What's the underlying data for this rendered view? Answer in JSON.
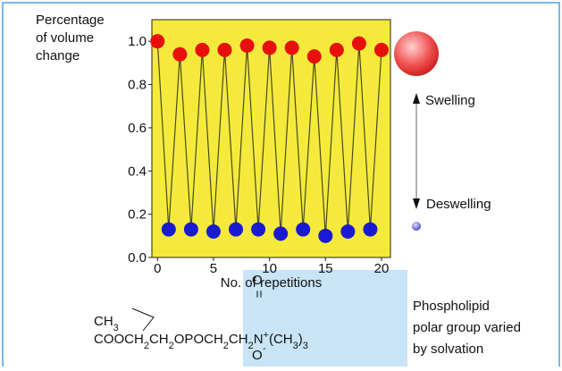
{
  "chart_data": {
    "type": "line",
    "y_label_lines": [
      "Percentage",
      "of volume",
      "change"
    ],
    "x_label": "No. of repetitions",
    "x": [
      0,
      1,
      2,
      3,
      4,
      5,
      6,
      7,
      8,
      9,
      10,
      11,
      12,
      13,
      14,
      15,
      16,
      17,
      18,
      19,
      20
    ],
    "values": [
      1.0,
      0.13,
      0.94,
      0.13,
      0.96,
      0.12,
      0.96,
      0.13,
      0.98,
      0.13,
      0.97,
      0.11,
      0.97,
      0.13,
      0.93,
      0.1,
      0.96,
      0.12,
      0.99,
      0.13,
      0.96
    ],
    "point_colors": [
      "#e8100c",
      "#1a1ad0",
      "#e8100c",
      "#1a1ad0",
      "#e8100c",
      "#1a1ad0",
      "#e8100c",
      "#1a1ad0",
      "#e8100c",
      "#1a1ad0",
      "#e8100c",
      "#1a1ad0",
      "#e8100c",
      "#1a1ad0",
      "#e8100c",
      "#1a1ad0",
      "#e8100c",
      "#1a1ad0",
      "#e8100c",
      "#1a1ad0",
      "#e8100c"
    ],
    "line_color": "#4a4a20",
    "background": "#f5ea3c",
    "xlim": [
      -0.5,
      20.8
    ],
    "xticks": [
      0,
      5,
      10,
      15,
      20
    ],
    "ylim": [
      0,
      1.1
    ],
    "yticks": [
      {
        "value": 0,
        "label": "0.0"
      },
      0.2,
      0.4,
      0.6,
      0.8,
      {
        "value": 1,
        "label": "1.0"
      }
    ],
    "swelling_label": "Swelling",
    "deswelling_label": "Deswelling"
  },
  "formula": {
    "top_o": "O",
    "double_bond": "=",
    "bottom_o": "O",
    "bottom_o_charge": "-",
    "line1": [
      "CH",
      "3"
    ],
    "line2": [
      "COOCH",
      "2",
      "CH",
      "2",
      "OPOCH",
      "2",
      "CH",
      "2",
      "N",
      "+",
      "(CH",
      "3",
      ")",
      "3"
    ]
  },
  "note_lines": [
    "Phospholipid",
    "polar group varied",
    "by solvation"
  ]
}
